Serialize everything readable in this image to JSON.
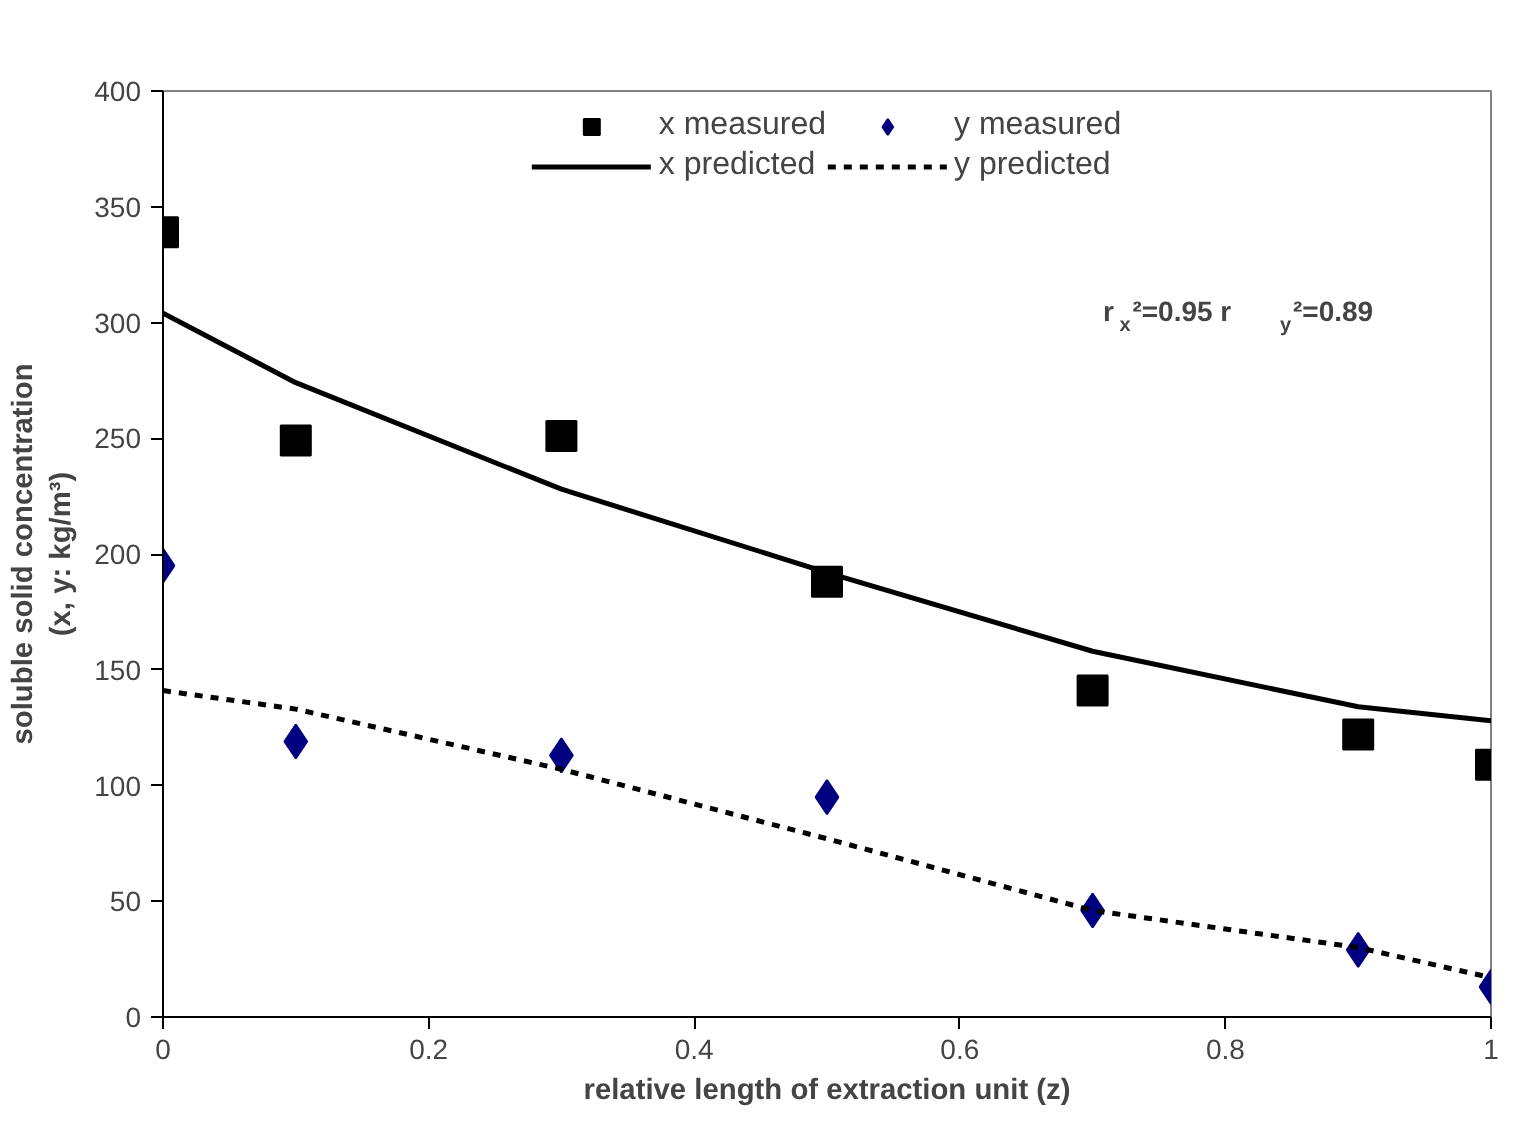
{
  "chart_data": {
    "type": "scatter",
    "xlabel": "relative length of extraction unit (z)",
    "ylabel": "soluble solid concentration\n(x, y: kg/m³)",
    "x": [
      0,
      0.1,
      0.3,
      0.5,
      0.7,
      0.9,
      1
    ],
    "series": [
      {
        "name": "x measured",
        "marker": "square",
        "color": "#000000",
        "values": [
          339,
          249,
          251,
          188,
          141,
          122,
          109
        ]
      },
      {
        "name": "y measured",
        "marker": "diamond",
        "color": "#000080",
        "values": [
          195,
          119,
          113,
          95,
          46,
          29,
          13
        ]
      },
      {
        "name": "x predicted",
        "type": "line",
        "line_style": "solid",
        "color": "#000000",
        "values": [
          304,
          274,
          228,
          192,
          158,
          134,
          128
        ]
      },
      {
        "name": "y predicted",
        "type": "line",
        "line_style": "dashed",
        "color": "#000000",
        "values": [
          141,
          133,
          107,
          77,
          46,
          30,
          17
        ]
      }
    ],
    "xlim": [
      0,
      1
    ],
    "xticks": [
      0,
      0.2,
      0.4,
      0.6,
      0.8,
      1
    ],
    "ylim": [
      0,
      400
    ],
    "yticks": [
      0,
      50,
      100,
      150,
      200,
      250,
      300,
      350,
      400
    ],
    "grid": false,
    "legend": "top",
    "annotations": [
      "r$_{x}$²=0.95  r$_{y}$²=0.89"
    ]
  }
}
